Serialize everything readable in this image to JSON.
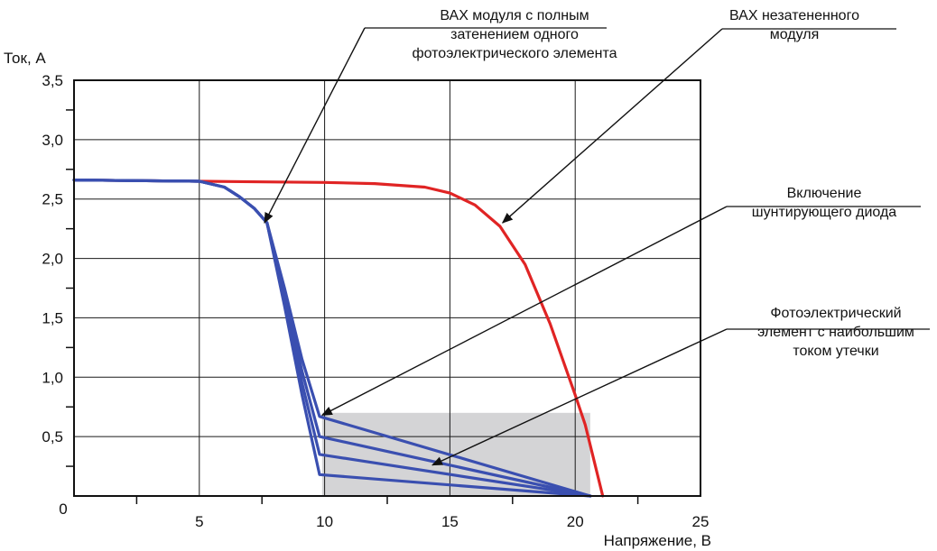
{
  "chart_data": {
    "type": "line",
    "xlabel": "Напряжение, В",
    "ylabel": "Ток, А",
    "xlim": [
      0,
      25
    ],
    "ylim": [
      0,
      3.5
    ],
    "grid": true,
    "x_ticks": [
      {
        "value": 0,
        "label": "0"
      },
      {
        "value": 5,
        "label": "5"
      },
      {
        "value": 10,
        "label": "10"
      },
      {
        "value": 15,
        "label": "15"
      },
      {
        "value": 20,
        "label": "20"
      },
      {
        "value": 25,
        "label": "25"
      }
    ],
    "y_ticks": [
      {
        "value": 0.5,
        "label": "0,5"
      },
      {
        "value": 1.0,
        "label": "1,0"
      },
      {
        "value": 1.5,
        "label": "1,5"
      },
      {
        "value": 2.0,
        "label": "2,0"
      },
      {
        "value": 2.5,
        "label": "2,5"
      },
      {
        "value": 3.0,
        "label": "3,0"
      },
      {
        "value": 3.5,
        "label": "3,5"
      }
    ],
    "shaded_region": {
      "x": [
        9.9,
        20.6
      ],
      "y": [
        0,
        0.7
      ],
      "color": "#d4d4d6"
    },
    "series": [
      {
        "color": "#e02424",
        "x": [
          0,
          5,
          10,
          12,
          14,
          15,
          16,
          17,
          18,
          19,
          19.5,
          20,
          20.4,
          21.1
        ],
        "y": [
          2.66,
          2.65,
          2.64,
          2.63,
          2.6,
          2.55,
          2.45,
          2.27,
          1.95,
          1.45,
          1.15,
          0.85,
          0.6,
          0.0
        ]
      },
      {
        "color": "#3a4fb0",
        "x": [
          0,
          5,
          6,
          6.6,
          7.2,
          7.7,
          8.4,
          9.1,
          9.8,
          20.6
        ],
        "y": [
          2.66,
          2.65,
          2.6,
          2.52,
          2.42,
          2.3,
          1.75,
          1.15,
          0.67,
          0.0
        ]
      },
      {
        "color": "#3a4fb0",
        "x": [
          0,
          5,
          6,
          6.6,
          7.2,
          7.7,
          8.4,
          9.1,
          9.8,
          20.6
        ],
        "y": [
          2.66,
          2.65,
          2.6,
          2.52,
          2.42,
          2.3,
          1.7,
          1.05,
          0.5,
          0.0
        ]
      },
      {
        "color": "#3a4fb0",
        "x": [
          0,
          5,
          6,
          6.6,
          7.2,
          7.7,
          8.4,
          9.1,
          9.8,
          20.6
        ],
        "y": [
          2.66,
          2.65,
          2.6,
          2.52,
          2.42,
          2.3,
          1.65,
          0.95,
          0.35,
          0.0
        ]
      },
      {
        "color": "#3a4fb0",
        "x": [
          0,
          5,
          6,
          6.6,
          7.2,
          7.7,
          8.4,
          9.1,
          9.8,
          20.6
        ],
        "y": [
          2.66,
          2.65,
          2.6,
          2.52,
          2.42,
          2.3,
          1.6,
          0.85,
          0.18,
          0.0
        ]
      }
    ],
    "annotations": [
      {
        "lines": [
          "ВАХ модуля с полным",
          "затенением одного",
          "фотоэлектрического элемента"
        ],
        "arrow_to": {
          "x": 7.6,
          "y": 2.3
        }
      },
      {
        "lines": [
          "ВАХ незатененного",
          "модуля"
        ],
        "arrow_to": {
          "x": 17.1,
          "y": 2.3
        }
      },
      {
        "lines": [
          "Включение",
          "шунтирующего диода"
        ],
        "arrow_to": {
          "x": 9.9,
          "y": 0.68
        }
      },
      {
        "lines": [
          "Фотоэлектрический",
          "элемент с наибольшим",
          "током утечки"
        ],
        "arrow_to": {
          "x": 14.3,
          "y": 0.26
        }
      }
    ]
  }
}
